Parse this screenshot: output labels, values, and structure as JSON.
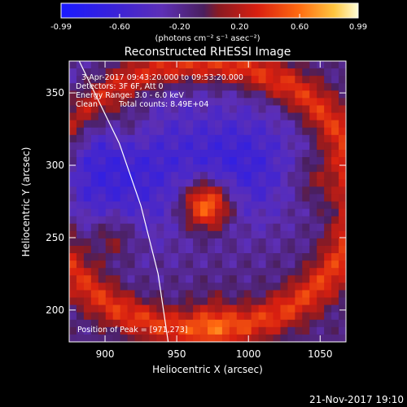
{
  "chart_data": {
    "type": "heatmap",
    "title": "Reconstructed RHESSI Image",
    "xlabel": "Heliocentric X (arcsec)",
    "ylabel": "Heliocentric Y (arcsec)",
    "xlim": [
      875,
      1068
    ],
    "ylim": [
      178,
      372
    ],
    "x_ticks": [
      900,
      950,
      1000,
      1050
    ],
    "y_ticks": [
      200,
      250,
      300,
      350
    ],
    "colorbar": {
      "range": [
        -0.99,
        0.99
      ],
      "ticks": [
        "-0.99",
        "-0.60",
        "-0.20",
        "0.20",
        "0.60",
        "0.99"
      ],
      "unit_label": "(photons cm⁻² s⁻¹ asec⁻²)"
    },
    "annotations": {
      "time_range": "3-Apr-2017 09:43:20.000 to 09:53:20.000",
      "detectors": "Detectors: 3F 6F, Att 0",
      "energy": "Energy Range: 3.0 - 6.0 keV",
      "clean": "Clean",
      "counts": "Total counts: 8.49E+04",
      "peak": "Position of Peak = [971,273]"
    },
    "peak": {
      "x": 971,
      "y": 273,
      "value": 0.99
    },
    "limb_line": [
      [
        882,
        372
      ],
      [
        910,
        315
      ],
      [
        925,
        272
      ],
      [
        937,
        225
      ],
      [
        944,
        178
      ]
    ],
    "timestamp": "21-Nov-2017 19:10"
  }
}
